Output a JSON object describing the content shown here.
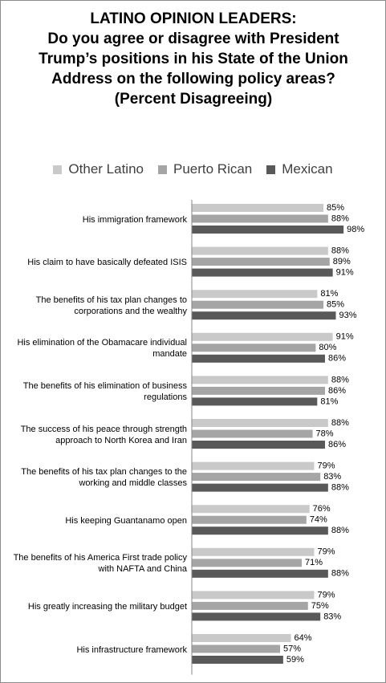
{
  "chart_data": {
    "type": "bar",
    "orientation": "horizontal",
    "title": "LATINO OPINION LEADERS:",
    "subtitle": "Do you agree or disagree with President Trump’s positions in his State of the Union Address on the following policy areas?",
    "note": "(Percent Disagreeing)",
    "categories": [
      "His immigration framework",
      "His claim to have basically defeated ISIS",
      "The benefits of his tax plan changes to corporations and the wealthy",
      "His elimination of the Obamacare individual mandate",
      "The benefits of his elimination of business regulations",
      "The success of his peace through strength approach to North Korea and Iran",
      "The benefits of his tax plan changes to the working and middle classes",
      "His keeping Guantanamo open",
      "The benefits of his America First trade policy with NAFTA and China",
      "His greatly increasing the military budget",
      "His infrastructure framework"
    ],
    "series": [
      {
        "name": "Other Latino",
        "color": "#c9c9c9",
        "values": [
          85,
          88,
          81,
          91,
          88,
          88,
          79,
          76,
          79,
          79,
          64
        ],
        "value_labels": [
          "85%",
          "88%",
          "81%",
          "91%",
          "88%",
          "88%",
          "79%",
          "76%",
          "79%",
          "79%",
          "64%"
        ]
      },
      {
        "name": "Puerto Rican",
        "color": "#a5a5a5",
        "values": [
          88,
          89,
          85,
          80,
          86,
          78,
          83,
          74,
          71,
          75,
          57
        ],
        "value_labels": [
          "88%",
          "89%",
          "85%",
          "80%",
          "86%",
          "78%",
          "83%",
          "74%",
          "71%",
          "75%",
          "57%"
        ]
      },
      {
        "name": "Mexican",
        "color": "#595959",
        "values": [
          98,
          91,
          93,
          86,
          81,
          86,
          88,
          88,
          88,
          83,
          59
        ],
        "value_labels": [
          "98%",
          "91%",
          "93%",
          "86%",
          "81%",
          "86%",
          "88%",
          "88%",
          "88%",
          "83%",
          "59%"
        ]
      }
    ],
    "xlim": [
      0,
      100
    ],
    "legend": "top"
  }
}
